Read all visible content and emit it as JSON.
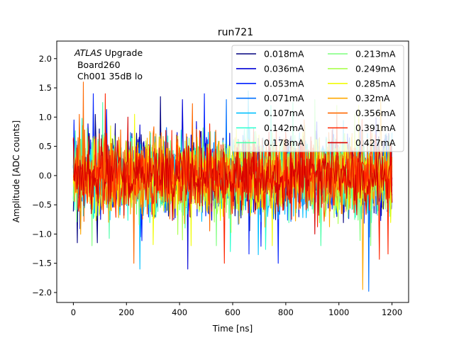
{
  "chart_data": {
    "type": "line",
    "title": "run721",
    "xlabel": "Time [ns]",
    "ylabel": "Amplitude [ADC counts]",
    "xlim": [
      -62.5,
      1262.5
    ],
    "ylim": [
      -2.17,
      2.3
    ],
    "x_range": [
      0,
      1200
    ],
    "grid": false,
    "legend_position": "top-right",
    "legend_columns": 2,
    "annotation": {
      "italic": "ATLAS",
      "rest": " Upgrade",
      "line2": " Board260",
      "line3": " Ch001 35dB lo"
    },
    "x_ticks": [
      {
        "value": 0,
        "label": "0"
      },
      {
        "value": 200,
        "label": "200"
      },
      {
        "value": 400,
        "label": "400"
      },
      {
        "value": 600,
        "label": "600"
      },
      {
        "value": 800,
        "label": "800"
      },
      {
        "value": 1000,
        "label": "1000"
      },
      {
        "value": 1200,
        "label": "1200"
      }
    ],
    "y_ticks": [
      {
        "value": -2.0,
        "label": "−2.0"
      },
      {
        "value": -1.5,
        "label": "−1.5"
      },
      {
        "value": -1.0,
        "label": "−1.0"
      },
      {
        "value": -0.5,
        "label": "−0.5"
      },
      {
        "value": 0.0,
        "label": "0.0"
      },
      {
        "value": 0.5,
        "label": "0.5"
      },
      {
        "value": 1.0,
        "label": "1.0"
      },
      {
        "value": 1.5,
        "label": "1.5"
      },
      {
        "value": 2.0,
        "label": "2.0"
      }
    ],
    "series": [
      {
        "name": "0.018mA",
        "color": "#00007f",
        "amplitude": 0.45,
        "peak_max": 1.35,
        "peak_min": -1.15
      },
      {
        "name": "0.036mA",
        "color": "#0000d6",
        "amplitude": 0.45,
        "peak_max": 1.3,
        "peak_min": -1.6
      },
      {
        "name": "0.053mA",
        "color": "#0020ff",
        "amplitude": 0.45,
        "peak_max": 1.4,
        "peak_min": -1.5
      },
      {
        "name": "0.071mA",
        "color": "#0070ff",
        "amplitude": 0.45,
        "peak_max": 1.3,
        "peak_min": -1.98
      },
      {
        "name": "0.107mA",
        "color": "#00c0ff",
        "amplitude": 0.45,
        "peak_max": 1.45,
        "peak_min": -1.6
      },
      {
        "name": "0.142mA",
        "color": "#26ffd0",
        "amplitude": 0.45,
        "peak_max": 1.2,
        "peak_min": -1.3
      },
      {
        "name": "0.178mA",
        "color": "#4dffaa",
        "amplitude": 0.45,
        "peak_max": 1.25,
        "peak_min": -1.2
      },
      {
        "name": "0.213mA",
        "color": "#7bff7b",
        "amplitude": 0.45,
        "peak_max": 1.3,
        "peak_min": -1.2
      },
      {
        "name": "0.249mA",
        "color": "#aaff4d",
        "amplitude": 0.45,
        "peak_max": 1.2,
        "peak_min": -1.1
      },
      {
        "name": "0.285mA",
        "color": "#f1fc06",
        "amplitude": 0.45,
        "peak_max": 1.2,
        "peak_min": -1.2
      },
      {
        "name": "0.32mA",
        "color": "#ffa800",
        "amplitude": 0.45,
        "peak_max": 1.3,
        "peak_min": -1.95
      },
      {
        "name": "0.356mA",
        "color": "#ff6800",
        "amplitude": 0.45,
        "peak_max": 1.6,
        "peak_min": -1.5
      },
      {
        "name": "0.391mA",
        "color": "#ff2600",
        "amplitude": 0.45,
        "peak_max": 1.4,
        "peak_min": -1.5
      },
      {
        "name": "0.427mA",
        "color": "#d60000",
        "amplitude": 0.4,
        "peak_max": 1.0,
        "peak_min": -1.0
      }
    ]
  }
}
